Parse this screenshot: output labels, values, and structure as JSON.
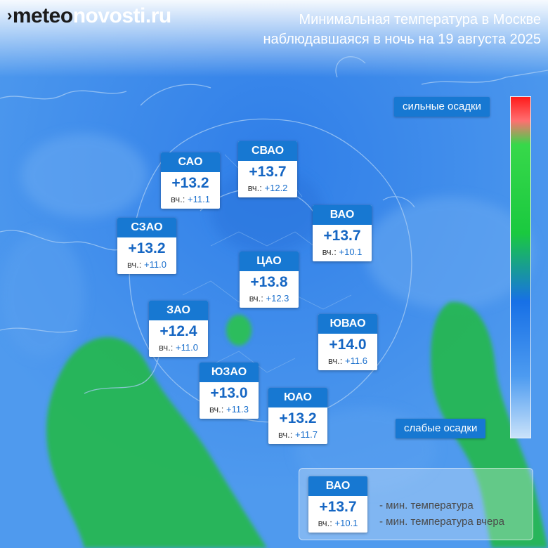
{
  "brand": {
    "prefix": "›",
    "part1": "meteo",
    "part2": "novosti.ru"
  },
  "title": {
    "line1": "Минимальная температура в Москве",
    "line2": "наблюдавшаяся в ночь на 19 августа 2025"
  },
  "yesterday_prefix": "вч.:",
  "districts": [
    {
      "name": "САО",
      "temp": "+13.2",
      "yesterday": "+11.1"
    },
    {
      "name": "СВАО",
      "temp": "+13.7",
      "yesterday": "+12.2"
    },
    {
      "name": "СЗАО",
      "temp": "+13.2",
      "yesterday": "+11.0"
    },
    {
      "name": "ВАО",
      "temp": "+13.7",
      "yesterday": "+10.1"
    },
    {
      "name": "ЦАО",
      "temp": "+13.8",
      "yesterday": "+12.3"
    },
    {
      "name": "ЗАО",
      "temp": "+12.4",
      "yesterday": "+11.0"
    },
    {
      "name": "ЮВАО",
      "temp": "+14.0",
      "yesterday": "+11.6"
    },
    {
      "name": "ЮЗАО",
      "temp": "+13.0",
      "yesterday": "+11.3"
    },
    {
      "name": "ЮАО",
      "temp": "+13.2",
      "yesterday": "+11.7"
    }
  ],
  "scale": {
    "top_label": "сильные осадки",
    "bottom_label": "слабые осадки",
    "colors": [
      "#ff1b1b",
      "#37d84a",
      "#1770e6",
      "#c9e2fa"
    ]
  },
  "legend": {
    "sample": {
      "name": "ВАО",
      "temp": "+13.7",
      "yesterday": "+10.1"
    },
    "line1": "- мин. температура",
    "line2": "- мин. температура вчера"
  }
}
